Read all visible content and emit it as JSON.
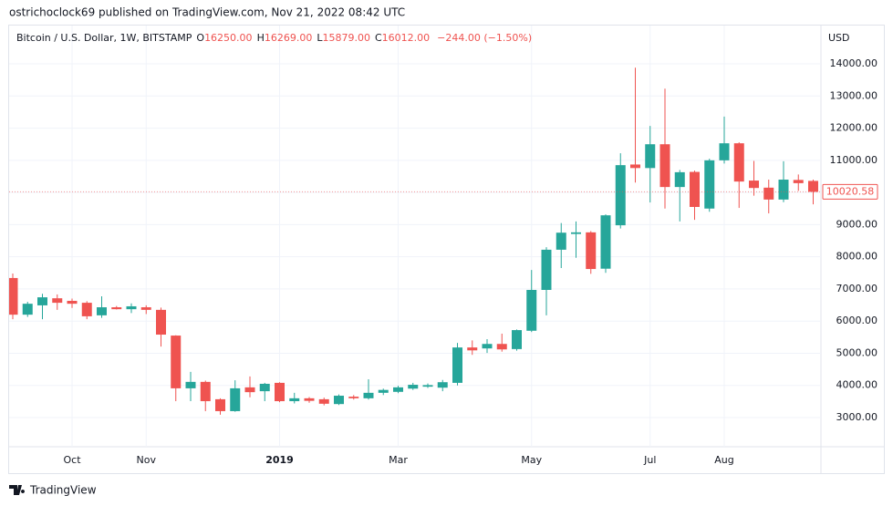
{
  "published": "ostrichoclock69 published on TradingView.com, Nov 21, 2022 08:42 UTC",
  "footer": "TradingView",
  "chart_data": {
    "type": "candlestick",
    "title": "Bitcoin / U.S. Dollar, 1W, BITSTAMP",
    "legend_ohlc": {
      "o_label": "O",
      "o": "16250.00",
      "h_label": "H",
      "h": "16269.00",
      "l_label": "L",
      "l": "15879.00",
      "c_label": "C",
      "c": "16012.00",
      "change": "−244.00 (−1.50%)"
    },
    "currency": "USD",
    "categories": [
      null,
      null,
      null,
      null,
      "Oct",
      null,
      null,
      null,
      null,
      "Nov",
      null,
      null,
      null,
      null,
      null,
      null,
      null,
      null,
      "2019",
      null,
      null,
      null,
      null,
      null,
      null,
      null,
      "Mar",
      null,
      null,
      null,
      null,
      null,
      null,
      null,
      null,
      "May",
      null,
      null,
      null,
      null,
      null,
      null,
      null,
      "Jul",
      null,
      null,
      null,
      null,
      "Aug",
      null,
      null,
      null,
      null,
      null,
      null
    ],
    "open": [
      7340,
      6200,
      6490,
      6710,
      6630,
      6570,
      6180,
      6430,
      6370,
      6430,
      6350,
      5550,
      3910,
      4110,
      3570,
      3200,
      3940,
      3820,
      4080,
      3510,
      3600,
      3570,
      3420,
      3650,
      3600,
      3770,
      3800,
      3900,
      3960,
      3930,
      4080,
      5180,
      5150,
      5290,
      5130,
      5700,
      6970,
      8220,
      8710,
      8760,
      7630,
      8980,
      10870,
      10760,
      11500,
      10170,
      10640,
      9500,
      11000,
      11530,
      10370,
      10150,
      9780,
      10390,
      10360
    ],
    "high": [
      7480,
      6600,
      6850,
      6830,
      6700,
      6620,
      6770,
      6470,
      6550,
      6490,
      6420,
      5560,
      4420,
      4150,
      3600,
      4160,
      4280,
      4080,
      4100,
      3770,
      3640,
      3620,
      3720,
      3700,
      4190,
      3900,
      3990,
      4080,
      4060,
      4170,
      5320,
      5400,
      5440,
      5610,
      5740,
      7590,
      8300,
      9050,
      9100,
      8800,
      9320,
      11220,
      13880,
      12070,
      13230,
      10700,
      10680,
      11050,
      12360,
      11560,
      10980,
      10400,
      10970,
      10560,
      10400
    ],
    "low": [
      6060,
      6130,
      6060,
      6350,
      6410,
      6060,
      6100,
      6360,
      6250,
      6220,
      5210,
      3510,
      3510,
      3200,
      3090,
      3180,
      3630,
      3510,
      3480,
      3440,
      3460,
      3380,
      3390,
      3560,
      3560,
      3700,
      3760,
      3860,
      3920,
      3820,
      4000,
      4950,
      5010,
      5050,
      5080,
      5660,
      6180,
      7650,
      7970,
      7470,
      7500,
      8880,
      10310,
      9690,
      9500,
      9100,
      9150,
      9400,
      10900,
      9520,
      9900,
      9350,
      9700,
      10050,
      9630
    ],
    "close": [
      6200,
      6540,
      6740,
      6570,
      6540,
      6150,
      6430,
      6370,
      6460,
      6350,
      5580,
      3910,
      4110,
      3510,
      3200,
      3910,
      3790,
      4050,
      3510,
      3600,
      3520,
      3430,
      3680,
      3600,
      3770,
      3860,
      3940,
      4020,
      4010,
      4100,
      5180,
      5090,
      5290,
      5120,
      5720,
      6970,
      8220,
      8750,
      8760,
      7620,
      9290,
      10850,
      10760,
      11500,
      10170,
      10630,
      9550,
      11000,
      11530,
      10340,
      10140,
      9780,
      10400,
      10290,
      10020.58
    ],
    "up_color": "#26a69a",
    "down_color": "#ef5350",
    "last_price": 10020.58,
    "ylim": [
      2093,
      15192
    ],
    "yticks": [
      {
        "value": 3000,
        "label": "3000.00"
      },
      {
        "value": 4000,
        "label": "4000.00"
      },
      {
        "value": 5000,
        "label": "5000.00"
      },
      {
        "value": 6000,
        "label": "6000.00"
      },
      {
        "value": 7000,
        "label": "7000.00"
      },
      {
        "value": 8000,
        "label": "8000.00"
      },
      {
        "value": 9000,
        "label": "9000.00"
      },
      {
        "value": 10000,
        "label": "10000.00"
      },
      {
        "value": 11000,
        "label": "11000.00"
      },
      {
        "value": 12000,
        "label": "12000.00"
      },
      {
        "value": 13000,
        "label": "13000.00"
      },
      {
        "value": 14000,
        "label": "14000.00"
      }
    ],
    "grid": true
  }
}
